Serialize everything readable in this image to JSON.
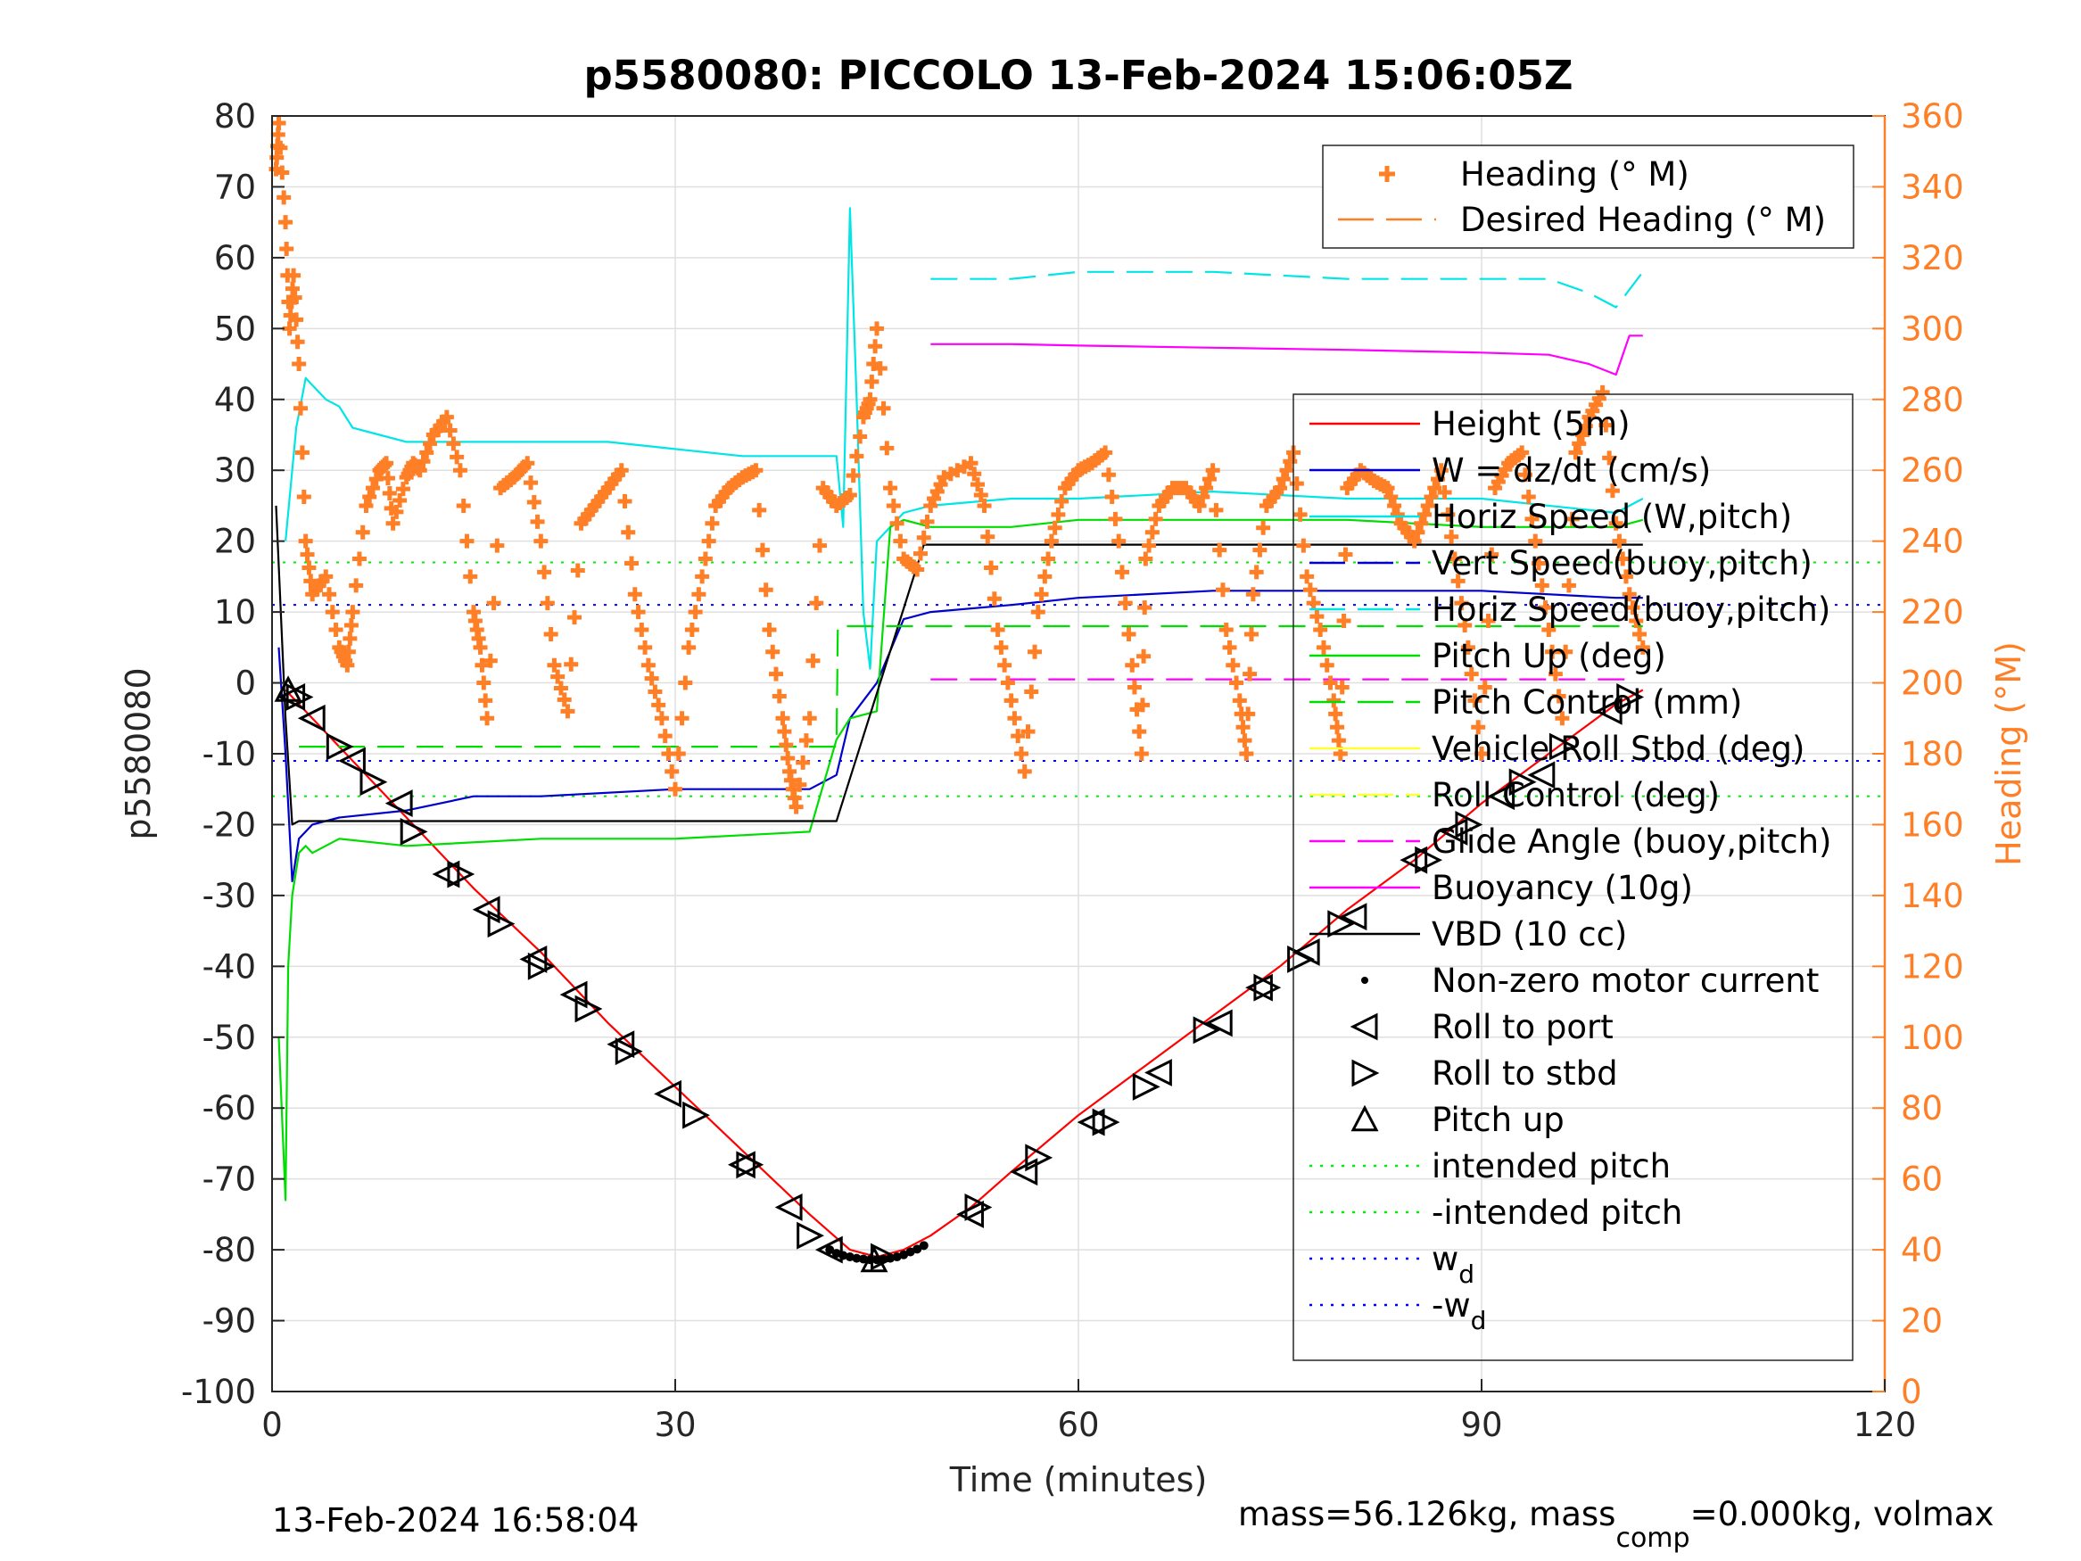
{
  "chart_data": {
    "type": "line",
    "title": "p5580080: PICCOLO 13-Feb-2024 15:06:05Z",
    "xlabel": "Time (minutes)",
    "ylabel": "p5580080",
    "y2label": "Heading (°M)",
    "xlim": [
      0,
      120
    ],
    "ylim": [
      -100,
      80
    ],
    "y2lim": [
      0,
      360
    ],
    "xticks": [
      0,
      30,
      60,
      90,
      120
    ],
    "yticks": [
      -100,
      -90,
      -80,
      -70,
      -60,
      -50,
      -40,
      -30,
      -20,
      -10,
      0,
      10,
      20,
      30,
      40,
      50,
      60,
      70,
      80
    ],
    "y2ticks": [
      0,
      20,
      40,
      60,
      80,
      100,
      120,
      140,
      160,
      180,
      200,
      220,
      240,
      260,
      280,
      300,
      320,
      340,
      360
    ],
    "grid": true,
    "footer_left": "13-Feb-2024 16:58:04",
    "footer_right": {
      "pre": "mass=56.126kg, mass",
      "sub": "comp",
      "post": "=0.000kg, volmax"
    },
    "colors": {
      "heading": "#ff7f27",
      "axis2": "#ff7f27",
      "height": "#ff0000",
      "w": "#0000cc",
      "horiz_speed": "#00e5e5",
      "pitch": "#00dd00",
      "roll": "#ffff33",
      "glide": "#ff00ff",
      "buoyancy": "#ff00ff",
      "vbd": "#000000",
      "intended_pitch": "#00ee00",
      "wd": "#0000ff"
    },
    "legend_top": [
      {
        "label": "Heading (° M)",
        "style": "plus",
        "color": "#ff7f27"
      },
      {
        "label": "Desired Heading (° M)",
        "style": "dashed",
        "color": "#ff7f27"
      }
    ],
    "legend_main": [
      {
        "label": "Height (5m)",
        "style": "solid",
        "color": "#ff0000"
      },
      {
        "label": "W = dz/dt (cm/s)",
        "style": "solid",
        "color": "#0000cc"
      },
      {
        "label": "Horiz Speed (W,pitch)",
        "style": "solid",
        "color": "#00e5e5"
      },
      {
        "label": "Vert Speed(buoy,pitch)",
        "style": "dashed",
        "color": "#0000cc"
      },
      {
        "label": "Horiz Speed(buoy,pitch)",
        "style": "dashed",
        "color": "#00e5e5"
      },
      {
        "label": "Pitch Up (deg)",
        "style": "solid",
        "color": "#00dd00"
      },
      {
        "label": "Pitch Control (mm)",
        "style": "dashed",
        "color": "#00dd00"
      },
      {
        "label": "Vehicle Roll Stbd (deg)",
        "style": "solid",
        "color": "#ffff33"
      },
      {
        "label": "Roll Control (deg)",
        "style": "dashed",
        "color": "#ffff33"
      },
      {
        "label": "Glide Angle (buoy,pitch)",
        "style": "dashed",
        "color": "#ff00ff"
      },
      {
        "label": "Buoyancy (10g)",
        "style": "solid",
        "color": "#ff00ff"
      },
      {
        "label": "VBD (10 cc)",
        "style": "solid",
        "color": "#000000"
      },
      {
        "label": "Non-zero motor current",
        "style": "dot",
        "color": "#000000"
      },
      {
        "label": "Roll to port",
        "style": "tri-left",
        "color": "#000000"
      },
      {
        "label": "Roll to stbd",
        "style": "tri-right",
        "color": "#000000"
      },
      {
        "label": "Pitch up",
        "style": "tri-up",
        "color": "#000000"
      },
      {
        "label": "intended pitch",
        "style": "dotted",
        "color": "#00ee00"
      },
      {
        "label": "-intended pitch",
        "style": "dotted",
        "color": "#00ee00"
      },
      {
        "label": "w",
        "sub": "d",
        "style": "dotted",
        "color": "#0000ff"
      },
      {
        "label": "-w",
        "sub": "d",
        "style": "dotted",
        "color": "#0000ff"
      }
    ],
    "series": [
      {
        "name": "Height (5m)",
        "color": "#ff0000",
        "x": [
          1,
          5,
          10,
          15,
          20,
          25,
          30,
          35,
          40,
          43,
          45,
          47,
          49,
          52,
          55,
          60,
          65,
          70,
          75,
          80,
          85,
          90,
          95,
          100,
          102
        ],
        "y": [
          -1,
          -9,
          -19,
          -29,
          -38,
          -48,
          -57,
          -66,
          -75,
          -80,
          -81,
          -80,
          -78,
          -74,
          -69,
          -61,
          -54,
          -47,
          -40,
          -32,
          -25,
          -17,
          -10,
          -3,
          -1
        ]
      },
      {
        "name": "W = dz/dt (cm/s)",
        "color": "#0000cc",
        "x": [
          0.5,
          1,
          1.5,
          2,
          3,
          5,
          10,
          15,
          20,
          30,
          40,
          42,
          43,
          45,
          47,
          49,
          55,
          60,
          70,
          80,
          90,
          100,
          102
        ],
        "y": [
          5,
          -10,
          -28,
          -22,
          -20,
          -19,
          -18,
          -16,
          -16,
          -15,
          -15,
          -13,
          -5,
          0,
          9,
          10,
          11,
          12,
          13,
          13,
          13,
          12,
          12
        ]
      },
      {
        "name": "Horiz Speed (W,pitch)",
        "color": "#00e5e5",
        "x": [
          1,
          1.8,
          2.5,
          4,
          5,
          6,
          8,
          10,
          15,
          20,
          25,
          30,
          35,
          40,
          42,
          42.5,
          43,
          43.5,
          44,
          44.5,
          45,
          46,
          47,
          49,
          55,
          60,
          70,
          80,
          90,
          100,
          102
        ],
        "y": [
          20,
          36,
          43,
          40,
          39,
          36,
          35,
          34,
          34,
          34,
          34,
          33,
          32,
          32,
          32,
          22,
          67,
          40,
          10,
          2,
          20,
          22,
          24,
          25,
          26,
          26,
          27,
          26,
          26,
          24,
          26
        ]
      },
      {
        "name": "Horiz Speed(buoy,pitch)",
        "color": "#00e5e5",
        "dash": true,
        "x": [
          49,
          55,
          60,
          70,
          80,
          90,
          95,
          98,
          100,
          102
        ],
        "y": [
          57,
          57,
          58,
          58,
          57,
          57,
          57,
          55,
          53,
          58
        ]
      },
      {
        "name": "Buoyancy (10g)",
        "color": "#ff00ff",
        "x": [
          49,
          55,
          60,
          70,
          80,
          90,
          95,
          98,
          100,
          101,
          102
        ],
        "y": [
          47.8,
          47.8,
          47.6,
          47.3,
          47,
          46.6,
          46.3,
          45,
          43.5,
          49,
          49
        ]
      },
      {
        "name": "Pitch Up (deg)",
        "color": "#00dd00",
        "x": [
          0.5,
          1,
          1.2,
          1.5,
          2,
          2.5,
          3,
          5,
          10,
          20,
          30,
          40,
          42,
          43,
          45,
          46,
          47,
          49,
          55,
          60,
          70,
          80,
          90,
          100,
          102
        ],
        "y": [
          -50,
          -73,
          -40,
          -30,
          -24,
          -23,
          -24,
          -22,
          -23,
          -22,
          -22,
          -21,
          -8,
          -5,
          -4,
          22,
          23,
          22,
          22,
          23,
          23,
          23,
          22,
          22,
          23
        ]
      },
      {
        "name": "VBD (10 cc)",
        "color": "#000000",
        "x": [
          0.3,
          1,
          1.5,
          2,
          10,
          20,
          30,
          42,
          48.5,
          60,
          80,
          102
        ],
        "y": [
          25,
          -5,
          -20,
          -19.5,
          -19.5,
          -19.5,
          -19.5,
          -19.5,
          19.5,
          19.5,
          19.5,
          19.5
        ]
      },
      {
        "name": "Pitch Control (mm)",
        "color": "#00dd00",
        "dash": true,
        "x": [
          2,
          42,
          42.1,
          49,
          102
        ],
        "y": [
          -9,
          -9,
          8,
          8,
          8
        ]
      },
      {
        "name": "Glide Angle (buoy,pitch)",
        "color": "#ff00ff",
        "dash": true,
        "x": [
          49,
          101
        ],
        "y": [
          0.5,
          0.5
        ]
      }
    ],
    "reference_lines": [
      {
        "name": "intended pitch",
        "y": 17,
        "color": "#00ee00"
      },
      {
        "name": "-intended pitch",
        "y": -16,
        "color": "#00ee00"
      },
      {
        "name": "w_d",
        "y": 11,
        "color": "#0000ff"
      },
      {
        "name": "-w_d",
        "y": -11,
        "color": "#0000ff"
      }
    ],
    "heading": {
      "name": "Heading (° M)",
      "axis": "right",
      "color": "#ff7f27",
      "x": [
        0.3,
        0.5,
        1,
        1.3,
        1.6,
        2,
        2.5,
        3,
        4,
        5,
        5.6,
        6,
        7,
        8,
        8.5,
        9,
        10,
        10.5,
        11,
        12,
        13,
        14,
        15,
        15.5,
        16,
        17,
        18,
        19,
        20,
        21,
        22,
        23,
        24,
        25,
        26,
        27,
        28,
        29,
        30,
        31,
        32,
        33,
        34,
        35,
        36,
        37,
        38,
        38.5,
        39,
        40,
        41,
        42,
        43,
        44,
        44.5,
        45,
        46,
        47,
        48,
        49,
        50,
        52,
        53,
        54,
        55,
        56,
        57,
        58,
        59,
        60,
        61,
        62,
        63,
        64,
        64.7,
        65,
        66,
        67,
        68,
        69,
        70,
        71,
        72,
        72.5,
        73,
        74,
        75,
        76,
        77,
        78,
        79,
        79.5,
        80,
        81,
        82,
        83,
        84,
        85,
        86,
        87,
        88,
        89,
        90,
        91,
        92,
        93,
        94,
        95,
        96,
        97,
        98,
        99,
        100,
        101,
        102
      ],
      "y": [
        345,
        358,
        330,
        300,
        315,
        290,
        240,
        225,
        230,
        210,
        205,
        220,
        250,
        260,
        262,
        245,
        258,
        262,
        260,
        270,
        275,
        260,
        220,
        210,
        190,
        255,
        258,
        262,
        240,
        205,
        192,
        245,
        250,
        255,
        260,
        225,
        205,
        190,
        170,
        210,
        230,
        250,
        255,
        258,
        260,
        215,
        190,
        175,
        165,
        190,
        255,
        250,
        253,
        275,
        280,
        300,
        255,
        235,
        232,
        250,
        258,
        262,
        250,
        215,
        195,
        175,
        220,
        240,
        255,
        260,
        262,
        265,
        240,
        205,
        180,
        235,
        250,
        255,
        255,
        250,
        260,
        215,
        195,
        180,
        225,
        250,
        255,
        265,
        230,
        215,
        195,
        180,
        255,
        260,
        257,
        255,
        245,
        240,
        250,
        260,
        235,
        210,
        180,
        255,
        262,
        265,
        240,
        215,
        190,
        265,
        275,
        282,
        245,
        225,
        210
      ]
    },
    "markers": {
      "roll_to_port": {
        "x": [
          1.5,
          3,
          6,
          9.5,
          13,
          16,
          19.5,
          22.5,
          26,
          29.5,
          35,
          38.5,
          41.5,
          52,
          56,
          61,
          66,
          70.5,
          73.5,
          77,
          80.5,
          85,
          88,
          91.5,
          94.5,
          99.5
        ],
        "y": [
          -2,
          -5,
          -11,
          -17,
          -27,
          -32,
          -39,
          -44,
          -51,
          -58,
          -68,
          -74,
          -80,
          -75,
          -69,
          -62,
          -55,
          -48,
          -43,
          -38,
          -33,
          -25,
          -21,
          -16,
          -13,
          -4
        ]
      },
      "roll_to_stbd": {
        "x": [
          2,
          5,
          7.5,
          10.5,
          14,
          17,
          20,
          23.5,
          26.5,
          31.5,
          35.5,
          40,
          45.5,
          52.5,
          57,
          62,
          65,
          69.5,
          74,
          76.5,
          79.5,
          86,
          89,
          93,
          96,
          101
        ],
        "y": [
          -2,
          -9,
          -14,
          -21,
          -27,
          -34,
          -40,
          -46,
          -52,
          -61,
          -68,
          -78,
          -81,
          -74,
          -67,
          -62,
          -57,
          -49,
          -43,
          -39,
          -34,
          -25,
          -20,
          -14,
          -9,
          -2
        ]
      },
      "pitch_up": {
        "x": [
          1.2,
          44.8
        ],
        "y": [
          -1,
          -81.5
        ]
      },
      "motor_current": {
        "x": [
          41.5,
          42,
          42.5,
          43,
          43.5,
          44,
          44.5,
          45,
          45.5,
          46,
          46.5,
          47,
          47.5,
          48,
          48.5
        ],
        "y": [
          -80,
          -80.5,
          -80.8,
          -81,
          -81.2,
          -81.3,
          -81.4,
          -81.4,
          -81.3,
          -81.2,
          -81,
          -80.7,
          -80.3,
          -79.9,
          -79.4
        ]
      }
    }
  }
}
